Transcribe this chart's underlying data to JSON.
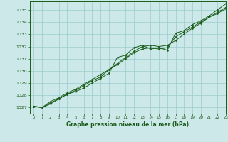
{
  "title": "Graphe pression niveau de la mer (hPa)",
  "xlim": [
    -0.5,
    23
  ],
  "ylim": [
    1026.5,
    1035.7
  ],
  "xticks": [
    0,
    1,
    2,
    3,
    4,
    5,
    6,
    7,
    8,
    9,
    10,
    11,
    12,
    13,
    14,
    15,
    16,
    17,
    18,
    19,
    20,
    21,
    22,
    23
  ],
  "yticks": [
    1027,
    1028,
    1029,
    1030,
    1031,
    1032,
    1033,
    1034,
    1035
  ],
  "bg_color": "#cce8e8",
  "grid_color": "#99cccc",
  "line_color": "#1a5c1a",
  "title_color": "#1a5c1a",
  "series": [
    [
      1027.1,
      1027.0,
      1027.3,
      1027.7,
      1028.1,
      1028.3,
      1028.6,
      1029.0,
      1029.4,
      1029.8,
      1031.1,
      1031.3,
      1031.9,
      1032.1,
      1031.8,
      1031.9,
      1031.7,
      1033.1,
      1033.3,
      1033.8,
      1034.1,
      1034.5,
      1035.0,
      1035.5
    ],
    [
      1027.1,
      1027.0,
      1027.4,
      1027.7,
      1028.1,
      1028.4,
      1028.8,
      1029.2,
      1029.5,
      1030.1,
      1030.5,
      1031.0,
      1031.5,
      1031.8,
      1031.9,
      1031.8,
      1031.9,
      1032.8,
      1033.2,
      1033.6,
      1034.0,
      1034.4,
      1034.8,
      1035.2
    ],
    [
      1027.1,
      1027.0,
      1027.5,
      1027.8,
      1028.2,
      1028.5,
      1028.9,
      1029.3,
      1029.7,
      1030.1,
      1030.6,
      1031.1,
      1031.6,
      1032.0,
      1032.1,
      1032.0,
      1032.1,
      1032.5,
      1033.0,
      1033.5,
      1033.9,
      1034.4,
      1034.7,
      1035.1
    ]
  ]
}
